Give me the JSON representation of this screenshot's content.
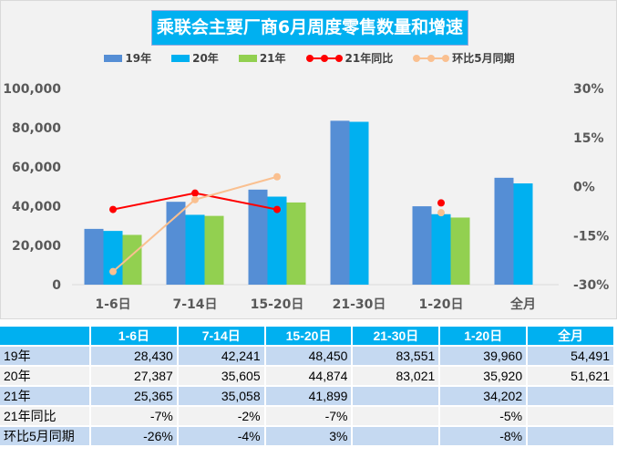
{
  "chart_data": {
    "type": "bar",
    "title": "乘联会主要厂商6月周度零售数量和增速",
    "categories": [
      "1-6日",
      "7-14日",
      "15-20日",
      "21-30日",
      "1-20日",
      "全月"
    ],
    "series": [
      {
        "name": "19年",
        "type": "bar",
        "color": "#558ed5",
        "values": [
          28430,
          42241,
          48450,
          83551,
          39960,
          54491
        ]
      },
      {
        "name": "20年",
        "type": "bar",
        "color": "#00b0f0",
        "values": [
          27387,
          35605,
          44874,
          83021,
          35920,
          51621
        ]
      },
      {
        "name": "21年",
        "type": "bar",
        "color": "#92d050",
        "values": [
          25365,
          35058,
          41899,
          null,
          34202,
          null
        ]
      },
      {
        "name": "21年同比",
        "type": "line",
        "axis": "right",
        "color": "#ff0000",
        "values": [
          -7,
          -2,
          -7,
          null,
          -5,
          null
        ]
      },
      {
        "name": "环比5月同期",
        "type": "line",
        "axis": "right",
        "color": "#fac090",
        "values": [
          -26,
          -4,
          3,
          null,
          -8,
          null
        ]
      }
    ],
    "ylim": [
      0,
      100000
    ],
    "yticks": [
      "0",
      "20,000",
      "40,000",
      "60,000",
      "80,000",
      "100,000"
    ],
    "y2lim": [
      -30,
      30
    ],
    "y2ticks": [
      "-30%",
      "-15%",
      "0%",
      "15%",
      "30%"
    ],
    "legend": "top"
  },
  "table": {
    "header": [
      "",
      "1-6日",
      "7-14日",
      "15-20日",
      "21-30日",
      "1-20日",
      "全月"
    ],
    "rows": [
      [
        "19年",
        "28,430",
        "42,241",
        "48,450",
        "83,551",
        "39,960",
        "54,491"
      ],
      [
        "20年",
        "27,387",
        "35,605",
        "44,874",
        "83,021",
        "35,920",
        "51,621"
      ],
      [
        "21年",
        "25,365",
        "35,058",
        "41,899",
        "",
        "34,202",
        ""
      ],
      [
        "21年同比",
        "-7%",
        "-2%",
        "-7%",
        "",
        "-5%",
        ""
      ],
      [
        "环比5月同期",
        "-26%",
        "-4%",
        "3%",
        "",
        "-8%",
        ""
      ]
    ]
  }
}
